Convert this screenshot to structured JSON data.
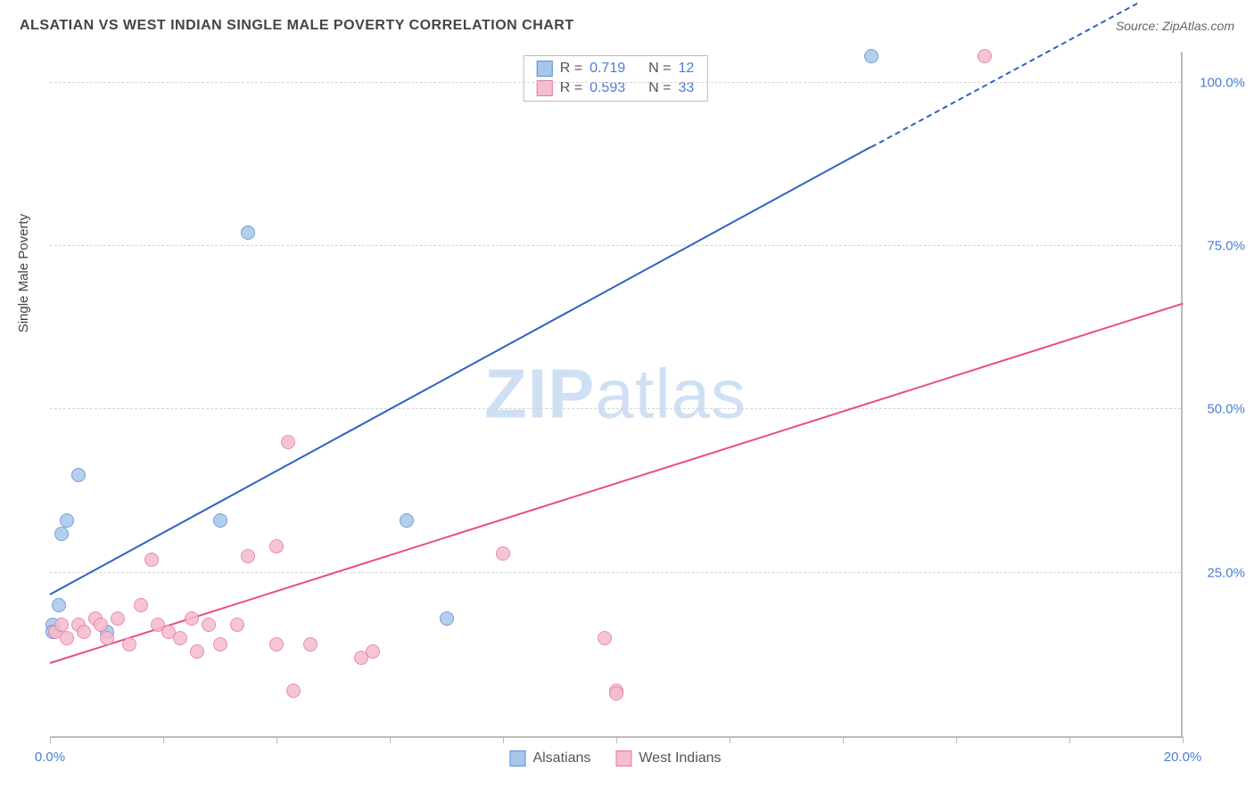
{
  "header": {
    "title": "ALSATIAN VS WEST INDIAN SINGLE MALE POVERTY CORRELATION CHART",
    "source_label": "Source:",
    "source_value": "ZipAtlas.com"
  },
  "chart": {
    "type": "scatter",
    "y_axis_label": "Single Male Poverty",
    "background_color": "#ffffff",
    "grid_color": "#d6d6d6",
    "axis_color": "#bbbbbb",
    "tick_label_color": "#4a7dd6",
    "xlim": [
      0,
      20
    ],
    "ylim": [
      0,
      105
    ],
    "x_ticks": [
      0,
      2,
      4,
      6,
      8,
      10,
      12,
      14,
      16,
      18,
      20
    ],
    "x_tick_labels": {
      "0": "0.0%",
      "20": "20.0%"
    },
    "y_ticks": [
      25,
      50,
      75,
      100
    ],
    "y_tick_labels": {
      "25": "25.0%",
      "50": "50.0%",
      "75": "75.0%",
      "100": "100.0%"
    },
    "marker_radius": 8,
    "marker_border_width": 1.5,
    "marker_fill_opacity": 0.25,
    "series": [
      {
        "id": "alsatians",
        "label": "Alsatians",
        "color_border": "#5a8fd6",
        "color_fill": "#a8c6ec",
        "legend_r": "0.719",
        "legend_n": "12",
        "trend": {
          "x1": 0,
          "y1": 21.5,
          "x2": 14.5,
          "y2": 90,
          "color": "#2d62c5",
          "width": 2.5,
          "dashed_ext_x2": 19.2,
          "dashed_ext_y2": 112
        },
        "points": [
          [
            0.05,
            17
          ],
          [
            0.05,
            16
          ],
          [
            0.15,
            20
          ],
          [
            0.2,
            31
          ],
          [
            0.5,
            40
          ],
          [
            0.3,
            33
          ],
          [
            1.0,
            16
          ],
          [
            3.0,
            33
          ],
          [
            3.5,
            77
          ],
          [
            6.3,
            33
          ],
          [
            7.0,
            18
          ],
          [
            14.5,
            104
          ]
        ]
      },
      {
        "id": "west_indians",
        "label": "West Indians",
        "color_border": "#e67a9a",
        "color_fill": "#f4bccd",
        "legend_r": "0.593",
        "legend_n": "33",
        "trend": {
          "x1": 0,
          "y1": 11,
          "x2": 20,
          "y2": 66,
          "color": "#e84f7a",
          "width": 2,
          "dashed_ext_x2": null,
          "dashed_ext_y2": null
        },
        "points": [
          [
            0.1,
            16
          ],
          [
            0.2,
            17
          ],
          [
            0.3,
            15
          ],
          [
            0.5,
            17
          ],
          [
            0.6,
            16
          ],
          [
            0.8,
            18
          ],
          [
            0.9,
            17
          ],
          [
            1.0,
            15
          ],
          [
            1.2,
            18
          ],
          [
            1.4,
            14
          ],
          [
            1.6,
            20
          ],
          [
            1.8,
            27
          ],
          [
            1.9,
            17
          ],
          [
            2.1,
            16
          ],
          [
            2.3,
            15
          ],
          [
            2.6,
            13
          ],
          [
            2.5,
            18
          ],
          [
            2.8,
            17
          ],
          [
            3.0,
            14
          ],
          [
            3.3,
            17
          ],
          [
            3.5,
            27.5
          ],
          [
            4.0,
            14
          ],
          [
            4.0,
            29
          ],
          [
            4.2,
            45
          ],
          [
            4.3,
            7
          ],
          [
            4.6,
            14
          ],
          [
            5.5,
            12
          ],
          [
            5.7,
            13
          ],
          [
            8.0,
            28
          ],
          [
            9.8,
            15
          ],
          [
            10.0,
            7
          ],
          [
            10.0,
            6.5
          ],
          [
            16.5,
            104
          ]
        ]
      }
    ],
    "legend_top": {
      "r_label": "R  =",
      "n_label": "N  ="
    },
    "watermark": {
      "part1": "ZIP",
      "part2": "atlas"
    }
  }
}
